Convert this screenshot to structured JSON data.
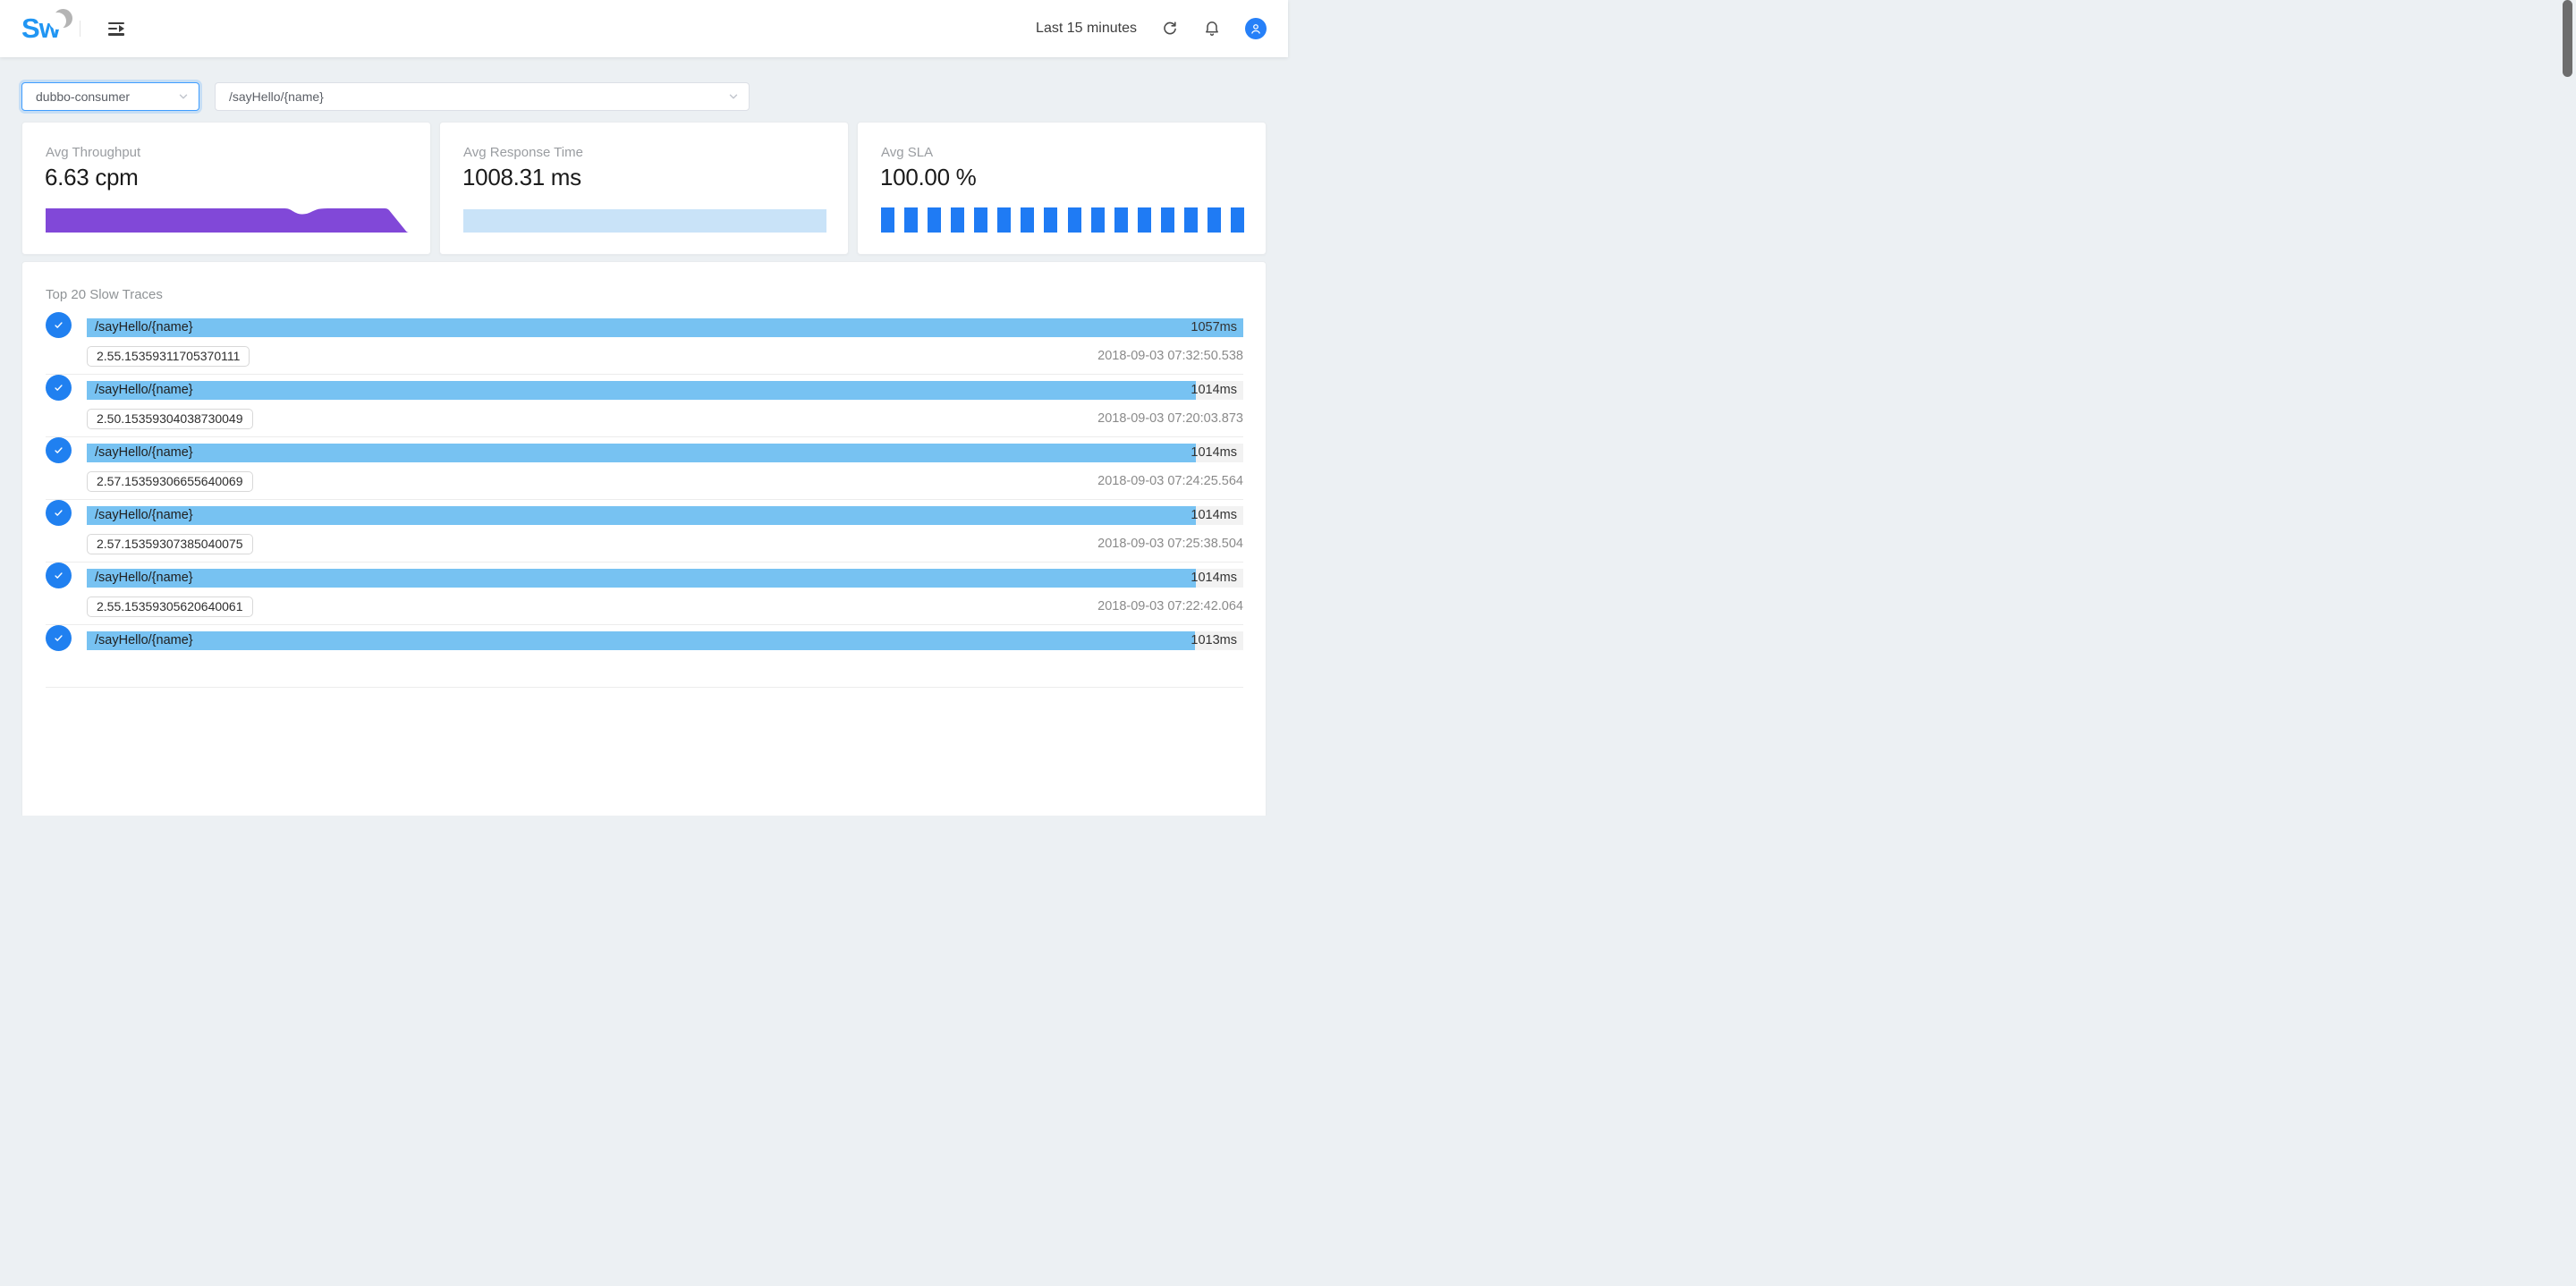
{
  "header": {
    "logo_text": "Sw",
    "time_range": "Last 15 minutes"
  },
  "filters": {
    "service": "dubbo-consumer",
    "endpoint": "/sayHello/{name}"
  },
  "metrics": [
    {
      "label": "Avg Throughput",
      "value": "6.63 cpm",
      "chart": {
        "type": "area",
        "color": "#8148d8",
        "shape": "flat top with a dip around 70% of width and a falloff at the right edge"
      }
    },
    {
      "label": "Avg Response Time",
      "value": "1008.31 ms",
      "chart": {
        "type": "area",
        "color": "#c9e3f8",
        "shape": "flat full-width band"
      }
    },
    {
      "label": "Avg SLA",
      "value": "100.00 %",
      "chart": {
        "type": "bar",
        "color": "#1f7bf4",
        "bar_count": 16,
        "values_pct": [
          100,
          100,
          100,
          100,
          100,
          100,
          100,
          100,
          100,
          100,
          100,
          100,
          100,
          100,
          100,
          100
        ]
      }
    }
  ],
  "traces": {
    "title": "Top 20 Slow Traces",
    "max_duration_ms": 1057,
    "items": [
      {
        "endpoint": "/sayHello/{name}",
        "duration_ms": 1057,
        "duration_label": "1057ms",
        "trace_id": "2.55.15359311705370111",
        "timestamp": "2018-09-03 07:32:50.538"
      },
      {
        "endpoint": "/sayHello/{name}",
        "duration_ms": 1014,
        "duration_label": "1014ms",
        "trace_id": "2.50.15359304038730049",
        "timestamp": "2018-09-03 07:20:03.873"
      },
      {
        "endpoint": "/sayHello/{name}",
        "duration_ms": 1014,
        "duration_label": "1014ms",
        "trace_id": "2.57.15359306655640069",
        "timestamp": "2018-09-03 07:24:25.564"
      },
      {
        "endpoint": "/sayHello/{name}",
        "duration_ms": 1014,
        "duration_label": "1014ms",
        "trace_id": "2.57.15359307385040075",
        "timestamp": "2018-09-03 07:25:38.504"
      },
      {
        "endpoint": "/sayHello/{name}",
        "duration_ms": 1014,
        "duration_label": "1014ms",
        "trace_id": "2.55.15359305620640061",
        "timestamp": "2018-09-03 07:22:42.064"
      },
      {
        "endpoint": "/sayHello/{name}",
        "duration_ms": 1013,
        "duration_label": "1013ms",
        "trace_id": "",
        "timestamp": ""
      }
    ]
  },
  "colors": {
    "background": "#ecf0f3",
    "accent_blue": "#2196f3",
    "sla_bar": "#1f7bf4",
    "throughput_purple": "#8148d8",
    "response_area": "#c9e3f8",
    "trace_bar": "#77c2f2",
    "trace_track": "#f2f2f2",
    "check_circle": "#2080f0",
    "focus_ring": "#3f9dff"
  }
}
